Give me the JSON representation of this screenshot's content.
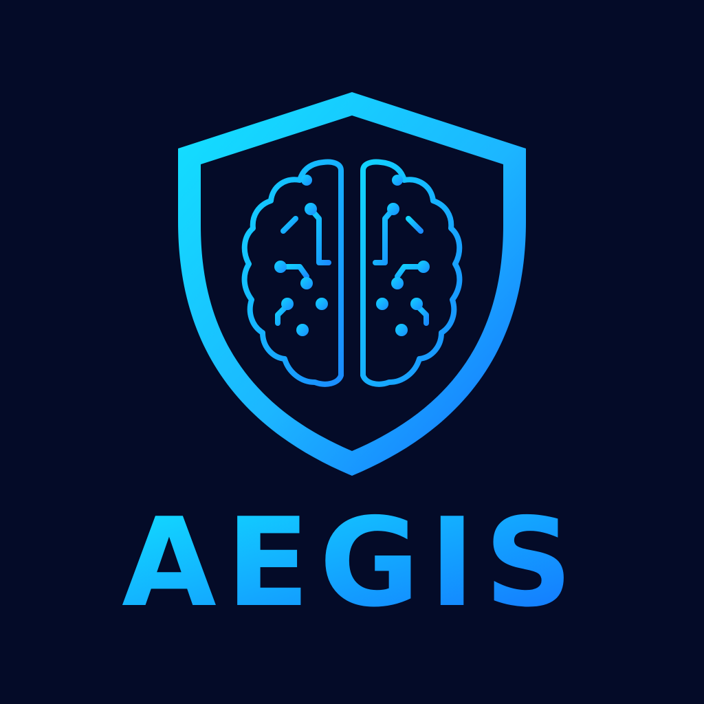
{
  "logo": {
    "wordmark": "AEGIS",
    "emblem_icon": "shield-brain-circuit-icon",
    "colors": {
      "background": "#040b28",
      "gradient_start": "#12e2ff",
      "gradient_mid": "#1cb6ff",
      "gradient_end": "#1470ff"
    }
  }
}
